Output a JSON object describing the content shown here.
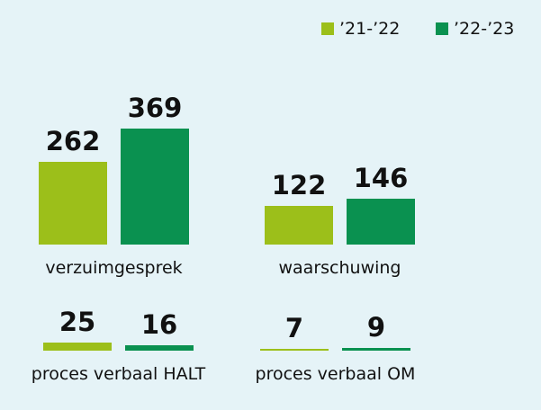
{
  "chart_data": {
    "type": "bar",
    "categories": [
      "verzuimgesprek",
      "waarschuwing",
      "proces verbaal HALT",
      "proces verbaal OM"
    ],
    "series": [
      {
        "name": "’21-’22",
        "color": "#9cbf1a",
        "values": [
          262,
          122,
          25,
          7
        ]
      },
      {
        "name": "’22-’23",
        "color": "#0a9150",
        "values": [
          369,
          146,
          16,
          9
        ]
      }
    ],
    "legend": "top-right"
  }
}
